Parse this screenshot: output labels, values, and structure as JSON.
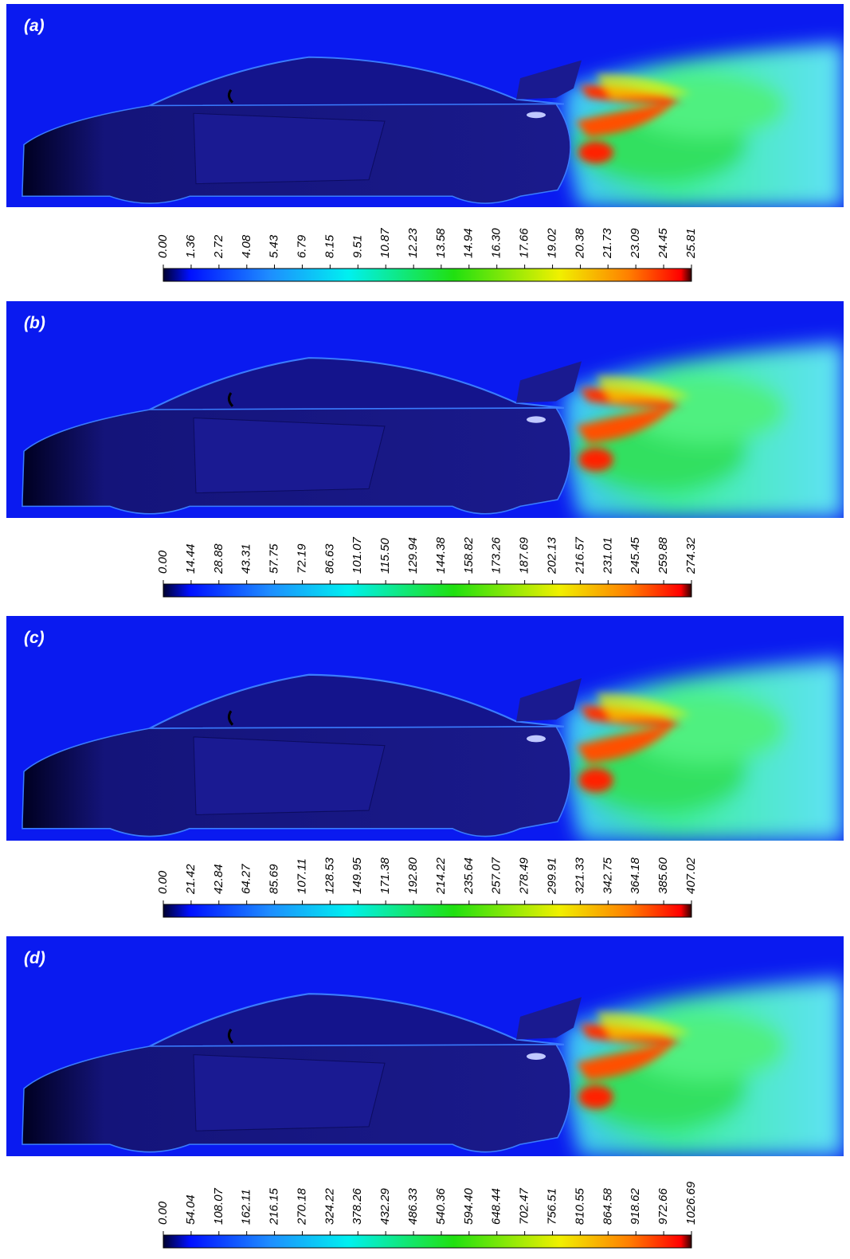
{
  "panels": [
    {
      "label": "(a)",
      "colorbar": {
        "lim": [
          0,
          25.81
        ],
        "ticks": [
          {
            "value": 0,
            "label": "0.00"
          },
          1.36,
          2.72,
          4.08,
          5.43,
          6.79,
          8.15,
          9.51,
          10.87,
          12.23,
          13.58,
          14.94,
          {
            "value": 16.3,
            "label": "16.30"
          },
          17.66,
          19.02,
          20.38,
          21.73,
          23.09,
          24.45,
          25.81
        ]
      }
    },
    {
      "label": "(b)",
      "colorbar": {
        "lim": [
          0,
          274.32
        ],
        "ticks": [
          {
            "value": 0,
            "label": "0.00"
          },
          14.44,
          28.88,
          43.31,
          57.75,
          72.19,
          86.63,
          101.07,
          {
            "value": 115.5,
            "label": "115.50"
          },
          129.94,
          144.38,
          158.82,
          173.26,
          187.69,
          202.13,
          216.57,
          231.01,
          245.45,
          259.88,
          274.32
        ]
      }
    },
    {
      "label": "(c)",
      "colorbar": {
        "lim": [
          0,
          407.02
        ],
        "ticks": [
          {
            "value": 0,
            "label": "0.00"
          },
          21.42,
          42.84,
          64.27,
          85.69,
          107.11,
          128.53,
          149.95,
          171.38,
          {
            "value": 192.8,
            "label": "192.80"
          },
          214.22,
          235.64,
          257.07,
          278.49,
          299.91,
          321.33,
          342.75,
          364.18,
          {
            "value": 385.6,
            "label": "385.60"
          },
          407.02
        ]
      }
    },
    {
      "label": "(d)",
      "colorbar": {
        "lim": [
          0,
          1026.69
        ],
        "ticks": [
          {
            "value": 0,
            "label": "0.00"
          },
          54.04,
          108.07,
          162.11,
          216.15,
          270.18,
          324.22,
          378.26,
          432.29,
          486.33,
          540.36,
          {
            "value": 594.4,
            "label": "594.40"
          },
          648.44,
          702.47,
          756.51,
          810.55,
          864.58,
          918.62,
          972.66,
          1026.69
        ]
      }
    }
  ]
}
